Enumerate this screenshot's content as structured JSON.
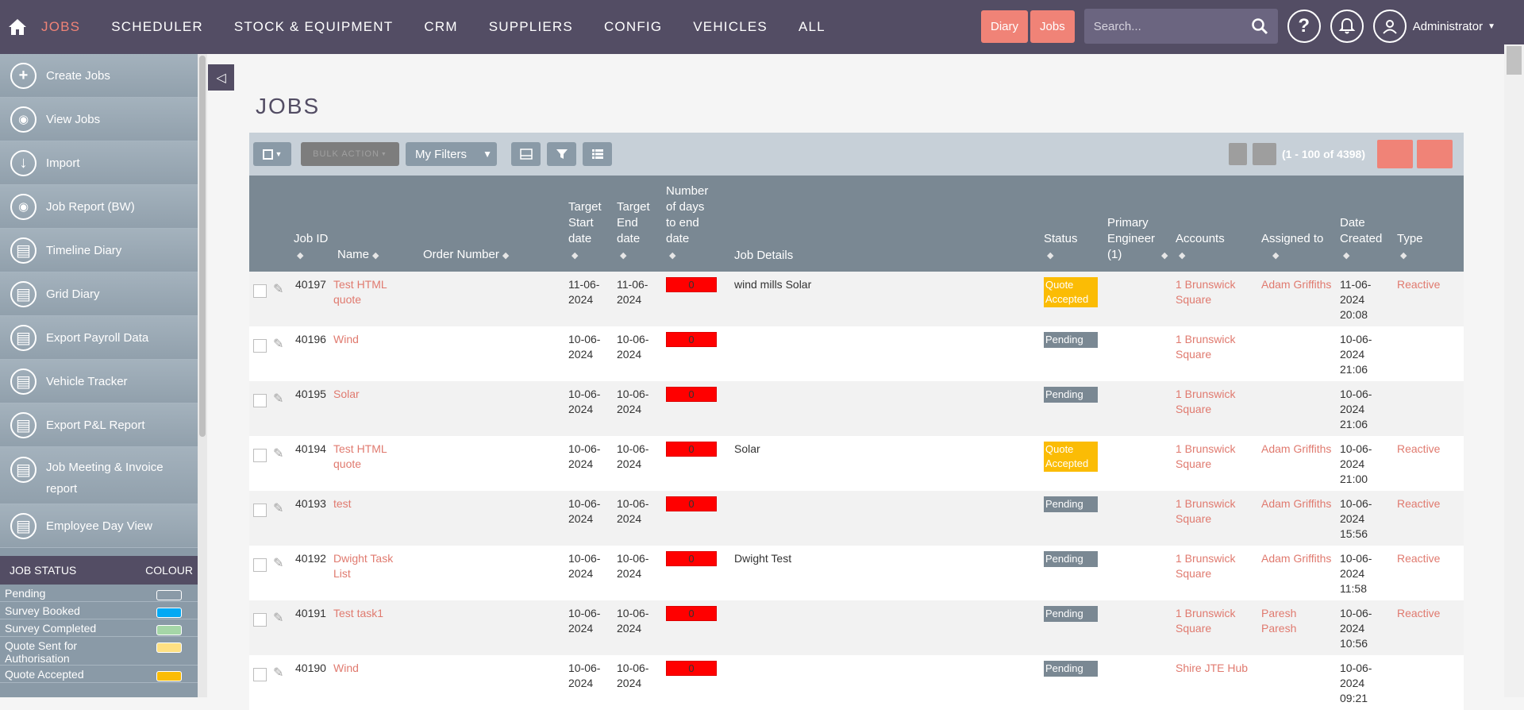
{
  "nav": {
    "items": [
      "JOBS",
      "SCHEDULER",
      "STOCK & EQUIPMENT",
      "CRM",
      "SUPPLIERS",
      "CONFIG",
      "VEHICLES",
      "ALL"
    ],
    "diary_label": "Diary",
    "jobs_label": "Jobs",
    "search_placeholder": "Search...",
    "user_name": "Administrator"
  },
  "sidebar": {
    "items": [
      {
        "label": "Create Jobs",
        "icon": "plus-icon"
      },
      {
        "label": "View Jobs",
        "icon": "eye-icon"
      },
      {
        "label": "Import",
        "icon": "arrow-down-icon"
      },
      {
        "label": "Job Report (BW)",
        "icon": "eye-icon"
      },
      {
        "label": "Timeline Diary",
        "icon": "calendar-icon"
      },
      {
        "label": "Grid Diary",
        "icon": "calendar-icon"
      },
      {
        "label": "Export Payroll Data",
        "icon": "calendar-icon"
      },
      {
        "label": "Vehicle Tracker",
        "icon": "calendar-icon"
      },
      {
        "label": "Export P&L Report",
        "icon": "calendar-icon"
      },
      {
        "label": "Job Meeting & Invoice report",
        "icon": "calendar-icon"
      },
      {
        "label": "Employee Day View",
        "icon": "calendar-icon"
      }
    ],
    "status_header": "JOB STATUS",
    "colour_header": "COLOUR",
    "statuses": [
      {
        "label": "Pending",
        "color": "#8a9aa7"
      },
      {
        "label": "Survey Booked",
        "color": "#03a9f4"
      },
      {
        "label": "Survey Completed",
        "color": "#a5d6a7"
      },
      {
        "label": "Quote Sent for Authorisation",
        "color": "#ffe082"
      },
      {
        "label": "Quote Accepted",
        "color": "#fbbc05"
      }
    ]
  },
  "page": {
    "title": "JOBS",
    "bulk_action": "BULK ACTION",
    "my_filters": "My Filters",
    "pagination": "(1 - 100 of 4398)"
  },
  "table": {
    "headers": {
      "job_id": "Job ID",
      "name": "Name",
      "order_number": "Order Number",
      "target_start": "Target Start date",
      "target_end": "Target End date",
      "days_to_end": "Number of days to end date",
      "job_details": "Job Details",
      "status": "Status",
      "primary_engineer": "Primary Engineer (1)",
      "accounts": "Accounts",
      "assigned_to": "Assigned to",
      "date_created": "Date Created",
      "type": "Type"
    },
    "rows": [
      {
        "id": "40197",
        "name": "Test HTML quote",
        "order": "",
        "start": "11-06-2024",
        "end": "11-06-2024",
        "days": "0",
        "details": "wind mills Solar",
        "status": "Quote Accepted",
        "status_kind": "accepted",
        "engineer": "",
        "account": "1 Brunswick Square",
        "assigned": "Adam Griffiths",
        "created": "11-06-2024 20:08",
        "type": "Reactive"
      },
      {
        "id": "40196",
        "name": "Wind",
        "order": "",
        "start": "10-06-2024",
        "end": "10-06-2024",
        "days": "0",
        "details": "",
        "status": "Pending",
        "status_kind": "pending",
        "engineer": "",
        "account": "1 Brunswick Square",
        "assigned": "",
        "created": "10-06-2024 21:06",
        "type": ""
      },
      {
        "id": "40195",
        "name": "Solar",
        "order": "",
        "start": "10-06-2024",
        "end": "10-06-2024",
        "days": "0",
        "details": "",
        "status": "Pending",
        "status_kind": "pending",
        "engineer": "",
        "account": "1 Brunswick Square",
        "assigned": "",
        "created": "10-06-2024 21:06",
        "type": ""
      },
      {
        "id": "40194",
        "name": "Test HTML quote",
        "order": "",
        "start": "10-06-2024",
        "end": "10-06-2024",
        "days": "0",
        "details": "Solar",
        "status": "Quote Accepted",
        "status_kind": "accepted",
        "engineer": "",
        "account": "1 Brunswick Square",
        "assigned": "Adam Griffiths",
        "created": "10-06-2024 21:00",
        "type": "Reactive"
      },
      {
        "id": "40193",
        "name": "test",
        "order": "",
        "start": "10-06-2024",
        "end": "10-06-2024",
        "days": "0",
        "details": "",
        "status": "Pending",
        "status_kind": "pending",
        "engineer": "",
        "account": "1 Brunswick Square",
        "assigned": "Adam Griffiths",
        "created": "10-06-2024 15:56",
        "type": "Reactive"
      },
      {
        "id": "40192",
        "name": "Dwight Task List",
        "order": "",
        "start": "10-06-2024",
        "end": "10-06-2024",
        "days": "0",
        "details": "Dwight Test",
        "status": "Pending",
        "status_kind": "pending",
        "engineer": "",
        "account": "1 Brunswick Square",
        "assigned": "Adam Griffiths",
        "created": "10-06-2024 11:58",
        "type": "Reactive"
      },
      {
        "id": "40191",
        "name": "Test task1",
        "order": "",
        "start": "10-06-2024",
        "end": "10-06-2024",
        "days": "0",
        "details": "",
        "status": "Pending",
        "status_kind": "pending",
        "engineer": "",
        "account": "1 Brunswick Square",
        "assigned": "Paresh Paresh",
        "created": "10-06-2024 10:56",
        "type": "Reactive"
      },
      {
        "id": "40190",
        "name": "Wind",
        "order": "",
        "start": "10-06-2024",
        "end": "10-06-2024",
        "days": "0",
        "details": "",
        "status": "Pending",
        "status_kind": "pending",
        "engineer": "",
        "account": "Shire JTE Hub",
        "assigned": "",
        "created": "10-06-2024 09:21",
        "type": ""
      }
    ]
  }
}
